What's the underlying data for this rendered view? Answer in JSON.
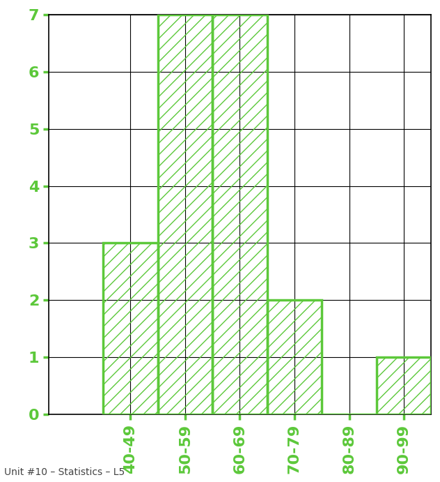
{
  "chart_data": {
    "type": "bar",
    "categories": [
      "40-49",
      "50-59",
      "60-69",
      "70-79",
      "80-89",
      "90-99"
    ],
    "values": [
      3,
      7,
      7,
      2,
      0,
      1
    ],
    "color": "#5cc83a",
    "ylim": [
      0,
      7
    ],
    "yticks": [
      0,
      1,
      2,
      3,
      4,
      5,
      6,
      7
    ],
    "grid": true,
    "caption": "Unit #10 – Statistics – L5"
  }
}
